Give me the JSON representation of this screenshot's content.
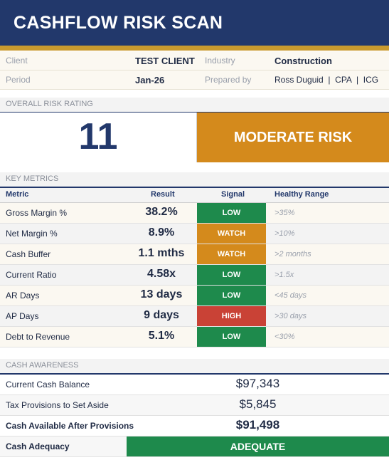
{
  "title": "CASHFLOW RISK SCAN",
  "info": {
    "client_label": "Client",
    "client_value": "TEST CLIENT",
    "industry_label": "Industry",
    "industry_value": "Construction",
    "period_label": "Period",
    "period_value": "Jan-26",
    "prepared_label": "Prepared by",
    "prepared_value": "Ross Duguid  |  CPA  |  ICG"
  },
  "overall": {
    "section_label": "OVERALL RISK RATING",
    "score": "11",
    "rating": "MODERATE RISK"
  },
  "metrics": {
    "section_label": "KEY METRICS",
    "columns": {
      "metric": "Metric",
      "result": "Result",
      "signal": "Signal",
      "range": "Healthy Range"
    },
    "rows": [
      {
        "name": "Gross Margin %",
        "result": "38.2%",
        "signal": "LOW",
        "signal_color": "#1e8a4c",
        "range": ">35%"
      },
      {
        "name": "Net Margin %",
        "result": "8.9%",
        "signal": "WATCH",
        "signal_color": "#d48a1c",
        "range": ">10%"
      },
      {
        "name": "Cash Buffer",
        "result": "1.1 mths",
        "signal": "WATCH",
        "signal_color": "#d48a1c",
        "range": ">2 months"
      },
      {
        "name": "Current Ratio",
        "result": "4.58x",
        "signal": "LOW",
        "signal_color": "#1e8a4c",
        "range": ">1.5x"
      },
      {
        "name": "AR Days",
        "result": "13 days",
        "signal": "LOW",
        "signal_color": "#1e8a4c",
        "range": "<45 days"
      },
      {
        "name": "AP Days",
        "result": "9 days",
        "signal": "HIGH",
        "signal_color": "#c94236",
        "range": ">30 days"
      },
      {
        "name": "Debt to Revenue",
        "result": "5.1%",
        "signal": "LOW",
        "signal_color": "#1e8a4c",
        "range": "<30%"
      }
    ]
  },
  "cash": {
    "section_label": "CASH AWARENESS",
    "balance_label": "Current Cash Balance",
    "balance_value": "$97,343",
    "tax_label": "Tax Provisions to Set Aside",
    "tax_value": "$5,845",
    "available_label": "Cash Available After Provisions",
    "available_value": "$91,498",
    "adequacy_label": "Cash Adequacy",
    "adequacy_value": "ADEQUATE"
  },
  "colors": {
    "header": "#22386b",
    "accent_gold": "#c99a2e",
    "moderate": "#d48a1c",
    "low": "#1e8a4c",
    "high": "#c94236"
  }
}
